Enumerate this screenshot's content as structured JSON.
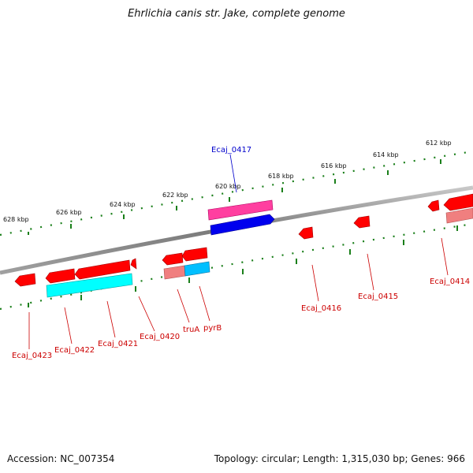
{
  "title": "Ehrlichia canis str. Jake, complete genome",
  "footer": {
    "accession_label": "Accession:",
    "accession": "NC_007354",
    "topology_label": "Topology:",
    "topology": "circular",
    "length_label": "Length:",
    "length": "1,315,030 bp",
    "genes_label": "Genes:",
    "genes": "966"
  },
  "kbp_ticks": [
    "612 kbp",
    "614 kbp",
    "616 kbp",
    "618 kbp",
    "620 kbp",
    "622 kbp",
    "624 kbp",
    "626 kbp",
    "628 kbp"
  ],
  "gene_labels": [
    "Ecaj_0417",
    "Ecaj_0414",
    "Ecaj_0415",
    "Ecaj_0416",
    "pyrB",
    "truA",
    "Ecaj_0420",
    "Ecaj_0421",
    "Ecaj_0422",
    "Ecaj_0423"
  ],
  "colors": {
    "backbone": "#8c8c8c",
    "tick": "#1a7f1a",
    "gene_red": "#ff0000",
    "gene_pink": "#ff3fa0",
    "gene_blue": "#0000ee",
    "gene_cyan": "#00ffff",
    "gene_salmon": "#f07f7f",
    "label_red": "#cc0000",
    "label_blue": "#0000cc"
  }
}
